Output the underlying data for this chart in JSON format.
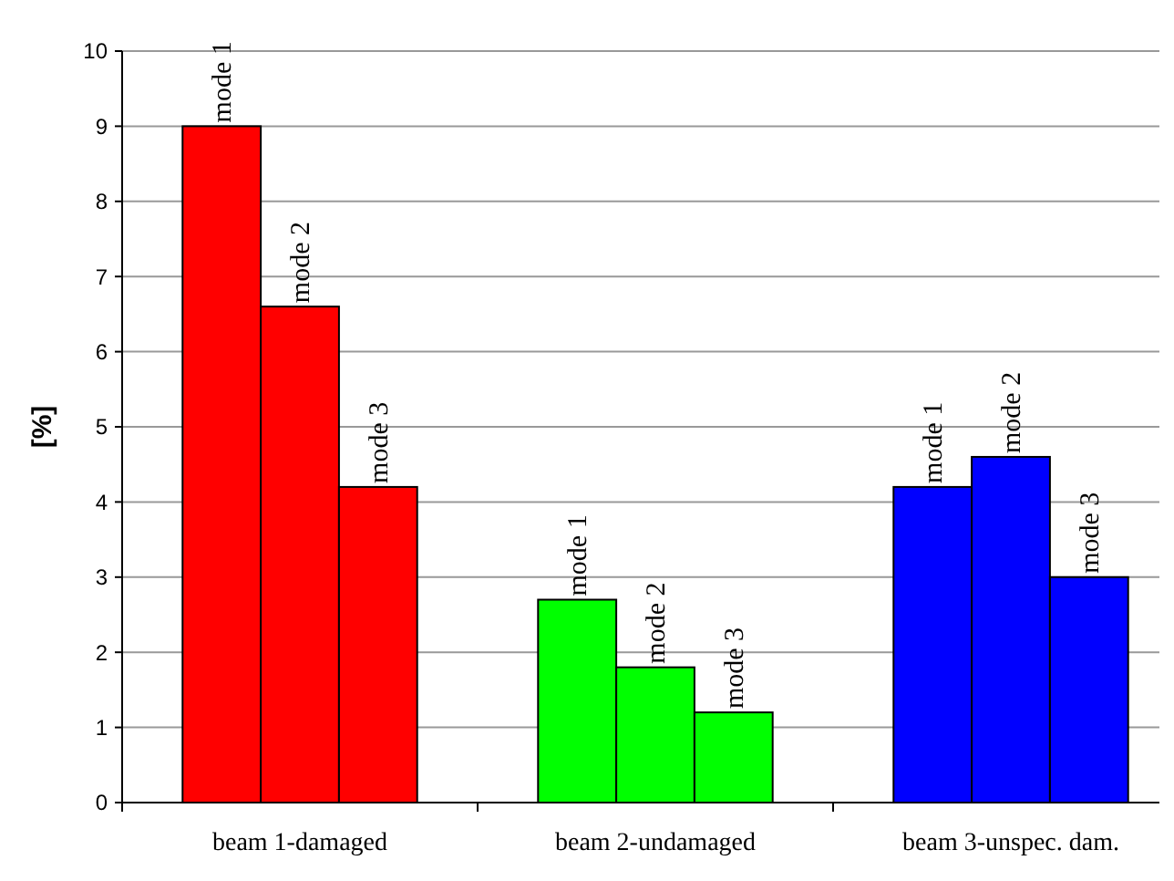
{
  "chart_data": {
    "type": "bar",
    "ylabel": "[%]",
    "categories": [
      "beam 1-damaged",
      "beam 2-undamaged",
      "beam 3-unspec. dam."
    ],
    "series": [
      {
        "name": "mode 1",
        "colors": [
          "#ff0000",
          "#00ff00",
          "#0000ff"
        ],
        "values": [
          9,
          2.7,
          4.2
        ]
      },
      {
        "name": "mode 2",
        "colors": [
          "#ff0000",
          "#00ff00",
          "#0000ff"
        ],
        "values": [
          6.6,
          1.8,
          4.6
        ]
      },
      {
        "name": "mode 3",
        "colors": [
          "#ff0000",
          "#00ff00",
          "#0000ff"
        ],
        "values": [
          4.2,
          1.2,
          3.0
        ]
      }
    ],
    "ylim": [
      0,
      10
    ],
    "yticks": [
      0,
      1,
      2,
      3,
      4,
      5,
      6,
      7,
      8,
      9,
      10
    ],
    "grid": "y"
  }
}
